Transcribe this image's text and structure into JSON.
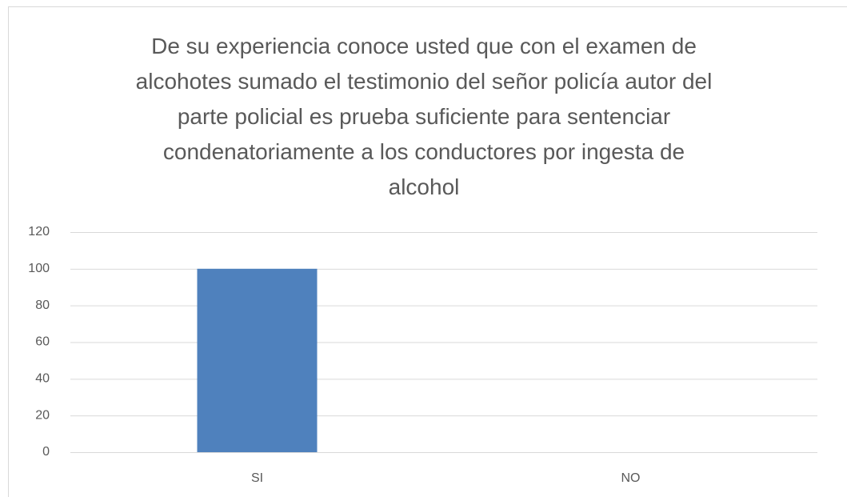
{
  "chart_data": {
    "type": "bar",
    "title": "De su experiencia conoce usted que con el examen de alcohotes  sumado el testimonio del señor policía autor del parte policial es prueba suficiente para sentenciar condenatoriamente a los conductores por ingesta de alcohol",
    "categories": [
      "SI",
      "NO"
    ],
    "values": [
      100,
      0
    ],
    "color": "#4f81bd",
    "ylim": [
      0,
      120
    ],
    "yticks": [
      0,
      20,
      40,
      60,
      80,
      100,
      120
    ],
    "grid": true
  }
}
